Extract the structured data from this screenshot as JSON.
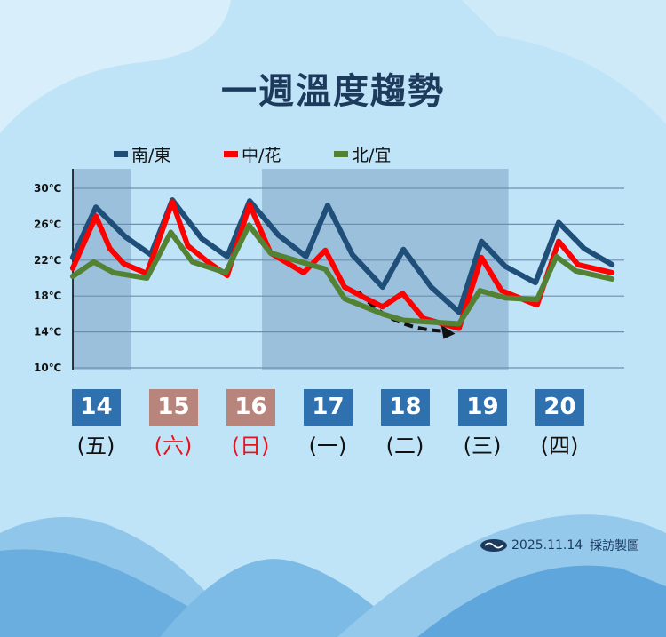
{
  "title": "一週溫度趨勢",
  "credit": {
    "date": "2025.11.14",
    "text": "採訪製圖"
  },
  "colors": {
    "bg": "#bfe4f8",
    "weekday_tile": "#2f70ae",
    "weekend_tile": "#b8857d",
    "weekend_text": "#e8141b",
    "shade": "#5a7fa8"
  },
  "days": [
    {
      "date": "14",
      "weekday": "(五)",
      "weekend": false
    },
    {
      "date": "15",
      "weekday": "(六)",
      "weekend": true
    },
    {
      "date": "16",
      "weekday": "(日)",
      "weekend": true
    },
    {
      "date": "17",
      "weekday": "(一)",
      "weekend": false
    },
    {
      "date": "18",
      "weekday": "(二)",
      "weekend": false
    },
    {
      "date": "19",
      "weekday": "(三)",
      "weekend": false
    },
    {
      "date": "20",
      "weekday": "(四)",
      "weekend": false
    }
  ],
  "chart_data": {
    "type": "line",
    "title": "一週溫度趨勢",
    "xlabel": "",
    "ylabel": "",
    "ylim": [
      10,
      30
    ],
    "yticks": [
      "30℃",
      "26℃",
      "22℃",
      "18℃",
      "14℃",
      "10℃"
    ],
    "ytick_values": [
      30,
      26,
      22,
      18,
      14,
      10
    ],
    "grid": true,
    "legend": "top",
    "shaded_day_ranges": [
      [
        13.7,
        14.45
      ],
      [
        16.15,
        19.34
      ]
    ],
    "trend_arrow": {
      "from": [
        17.4,
        18.5
      ],
      "to": [
        18.65,
        13.8
      ]
    },
    "series": [
      {
        "name": "南/東",
        "color": "#1f4e79",
        "points": [
          [
            13.7,
            22.3
          ],
          [
            14.0,
            27.9
          ],
          [
            14.38,
            24.6
          ],
          [
            14.71,
            22.6
          ],
          [
            14.99,
            28.7
          ],
          [
            15.37,
            24.4
          ],
          [
            15.7,
            22.4
          ],
          [
            15.99,
            28.6
          ],
          [
            16.36,
            24.8
          ],
          [
            16.72,
            22.4
          ],
          [
            17.0,
            28.1
          ],
          [
            17.32,
            22.6
          ],
          [
            17.71,
            19.0
          ],
          [
            17.98,
            23.2
          ],
          [
            18.34,
            19.0
          ],
          [
            18.7,
            16.2
          ],
          [
            18.99,
            24.1
          ],
          [
            19.3,
            21.3
          ],
          [
            19.69,
            19.5
          ],
          [
            19.99,
            26.2
          ],
          [
            20.32,
            23.3
          ],
          [
            20.68,
            21.5
          ]
        ]
      },
      {
        "name": "中/花",
        "color": "#ff0000",
        "points": [
          [
            13.7,
            21.1
          ],
          [
            14.0,
            26.9
          ],
          [
            14.18,
            23.3
          ],
          [
            14.36,
            21.6
          ],
          [
            14.66,
            20.5
          ],
          [
            14.99,
            28.5
          ],
          [
            15.19,
            23.6
          ],
          [
            15.45,
            21.8
          ],
          [
            15.7,
            20.3
          ],
          [
            15.99,
            28.2
          ],
          [
            16.26,
            22.8
          ],
          [
            16.69,
            20.6
          ],
          [
            16.97,
            23.1
          ],
          [
            17.22,
            19.0
          ],
          [
            17.48,
            17.8
          ],
          [
            17.71,
            16.8
          ],
          [
            17.97,
            18.3
          ],
          [
            18.24,
            15.5
          ],
          [
            18.7,
            14.4
          ],
          [
            18.99,
            22.3
          ],
          [
            19.25,
            18.6
          ],
          [
            19.71,
            17.0
          ],
          [
            19.99,
            24.1
          ],
          [
            20.24,
            21.5
          ],
          [
            20.68,
            20.6
          ]
        ]
      },
      {
        "name": "北/宜",
        "color": "#548235",
        "points": [
          [
            13.7,
            20.2
          ],
          [
            13.97,
            21.8
          ],
          [
            14.23,
            20.6
          ],
          [
            14.66,
            20.0
          ],
          [
            14.97,
            25.1
          ],
          [
            15.25,
            21.8
          ],
          [
            15.68,
            20.6
          ],
          [
            15.98,
            25.9
          ],
          [
            16.26,
            22.8
          ],
          [
            16.97,
            21.0
          ],
          [
            17.22,
            17.7
          ],
          [
            17.71,
            16.0
          ],
          [
            17.98,
            15.3
          ],
          [
            18.7,
            14.9
          ],
          [
            18.97,
            18.6
          ],
          [
            19.3,
            17.8
          ],
          [
            19.71,
            17.6
          ],
          [
            19.96,
            22.4
          ],
          [
            20.21,
            20.8
          ],
          [
            20.68,
            19.9
          ]
        ]
      }
    ]
  }
}
